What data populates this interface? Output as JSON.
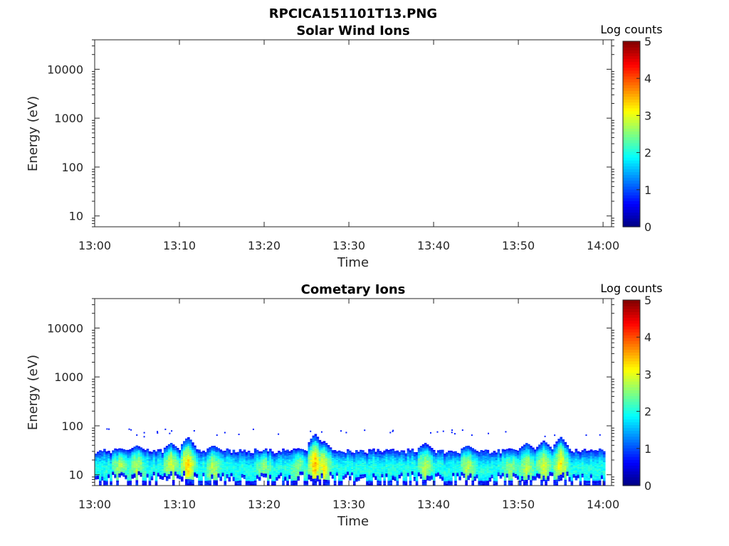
{
  "figure_title": "RPCICA151101T13.PNG",
  "chart_data": [
    {
      "type": "heatmap",
      "title": "Solar Wind Ions",
      "xlabel": "Time",
      "ylabel": "Energy (eV)",
      "x_ticks": [
        "13:00",
        "13:10",
        "13:20",
        "13:30",
        "13:40",
        "13:50",
        "14:00"
      ],
      "xlim": [
        "13:00",
        "14:01"
      ],
      "y_scale": "log",
      "y_ticks": [
        10,
        100,
        1000,
        10000
      ],
      "ylim": [
        6,
        40000
      ],
      "colorbar": {
        "label": "Log counts",
        "range": [
          0,
          5
        ],
        "ticks": [
          0,
          1,
          2,
          3,
          4,
          5
        ],
        "colormap": "jet"
      },
      "data": []
    },
    {
      "type": "heatmap",
      "title": "Cometary Ions",
      "xlabel": "Time",
      "ylabel": "Energy (eV)",
      "x_ticks": [
        "13:00",
        "13:10",
        "13:20",
        "13:30",
        "13:40",
        "13:50",
        "14:00"
      ],
      "xlim": [
        "13:00",
        "14:01"
      ],
      "y_scale": "log",
      "y_ticks": [
        10,
        100,
        1000,
        10000
      ],
      "ylim": [
        6,
        40000
      ],
      "colorbar": {
        "label": "Log counts",
        "range": [
          0,
          5
        ],
        "ticks": [
          0,
          1,
          2,
          3,
          4,
          5
        ],
        "colormap": "jet"
      },
      "band_energy_ev": {
        "low": 9,
        "high": 30
      },
      "spikes": [
        {
          "time": "13:03",
          "peak_ev": 35,
          "log_counts": 2.8
        },
        {
          "time": "13:05",
          "peak_ev": 40,
          "log_counts": 2.8
        },
        {
          "time": "13:09",
          "peak_ev": 45,
          "log_counts": 3.0
        },
        {
          "time": "13:11",
          "peak_ev": 60,
          "log_counts": 3.4
        },
        {
          "time": "13:14",
          "peak_ev": 40,
          "log_counts": 2.8
        },
        {
          "time": "13:20",
          "peak_ev": 30,
          "log_counts": 2.6
        },
        {
          "time": "13:24",
          "peak_ev": 35,
          "log_counts": 2.6
        },
        {
          "time": "13:26",
          "peak_ev": 70,
          "log_counts": 3.5
        },
        {
          "time": "13:27",
          "peak_ev": 50,
          "log_counts": 3.2
        },
        {
          "time": "13:39",
          "peak_ev": 45,
          "log_counts": 2.8
        },
        {
          "time": "13:44",
          "peak_ev": 40,
          "log_counts": 2.8
        },
        {
          "time": "13:49",
          "peak_ev": 35,
          "log_counts": 2.6
        },
        {
          "time": "13:51",
          "peak_ev": 45,
          "log_counts": 2.8
        },
        {
          "time": "13:53",
          "peak_ev": 50,
          "log_counts": 3.0
        },
        {
          "time": "13:55",
          "peak_ev": 60,
          "log_counts": 3.2
        }
      ],
      "background_log_counts": 2.0
    }
  ]
}
